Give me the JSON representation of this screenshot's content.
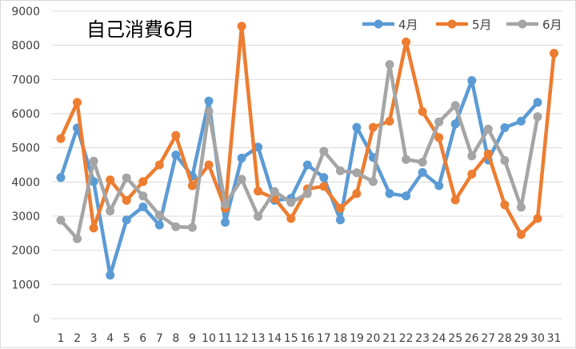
{
  "chart_data": {
    "type": "line",
    "title": "自己消費6月",
    "xlabel": "",
    "ylabel": "",
    "categories": [
      "1",
      "2",
      "3",
      "4",
      "5",
      "6",
      "7",
      "8",
      "9",
      "10",
      "11",
      "12",
      "13",
      "14",
      "15",
      "16",
      "17",
      "18",
      "19",
      "20",
      "21",
      "22",
      "23",
      "24",
      "25",
      "26",
      "27",
      "28",
      "29",
      "30",
      "31"
    ],
    "ylim": [
      0,
      9000
    ],
    "ytick_labels": [
      "0",
      "1000",
      "2000",
      "3000",
      "4000",
      "5000",
      "6000",
      "7000",
      "8000",
      "9000"
    ],
    "grid": "horizontal",
    "legend_position": "top-right",
    "series": [
      {
        "name": "4月",
        "color": "#5b9bd5",
        "values": [
          4130,
          5580,
          4010,
          1270,
          2890,
          3270,
          2740,
          4790,
          4170,
          6370,
          2820,
          4700,
          5020,
          3460,
          3520,
          4500,
          4130,
          2890,
          5600,
          4720,
          3660,
          3590,
          4280,
          3890,
          5700,
          6970,
          4640,
          5590,
          5780,
          6330,
          null
        ]
      },
      {
        "name": "5月",
        "color": "#ed7d31",
        "values": [
          5270,
          6330,
          2650,
          4060,
          3460,
          4010,
          4500,
          5360,
          3890,
          4500,
          3230,
          8560,
          3730,
          3520,
          2930,
          3800,
          3870,
          3230,
          3660,
          5600,
          5780,
          8100,
          6060,
          5300,
          3470,
          4230,
          4820,
          3330,
          2460,
          2930,
          7770
        ]
      },
      {
        "name": "6月",
        "color": "#a5a5a5",
        "values": [
          2880,
          2340,
          4610,
          3150,
          4120,
          3590,
          3030,
          2690,
          2670,
          6070,
          3350,
          4080,
          2990,
          3720,
          3400,
          3660,
          4900,
          4330,
          4270,
          4010,
          7440,
          4660,
          4580,
          5760,
          6240,
          4760,
          5550,
          4630,
          3260,
          5910,
          null
        ]
      }
    ]
  }
}
